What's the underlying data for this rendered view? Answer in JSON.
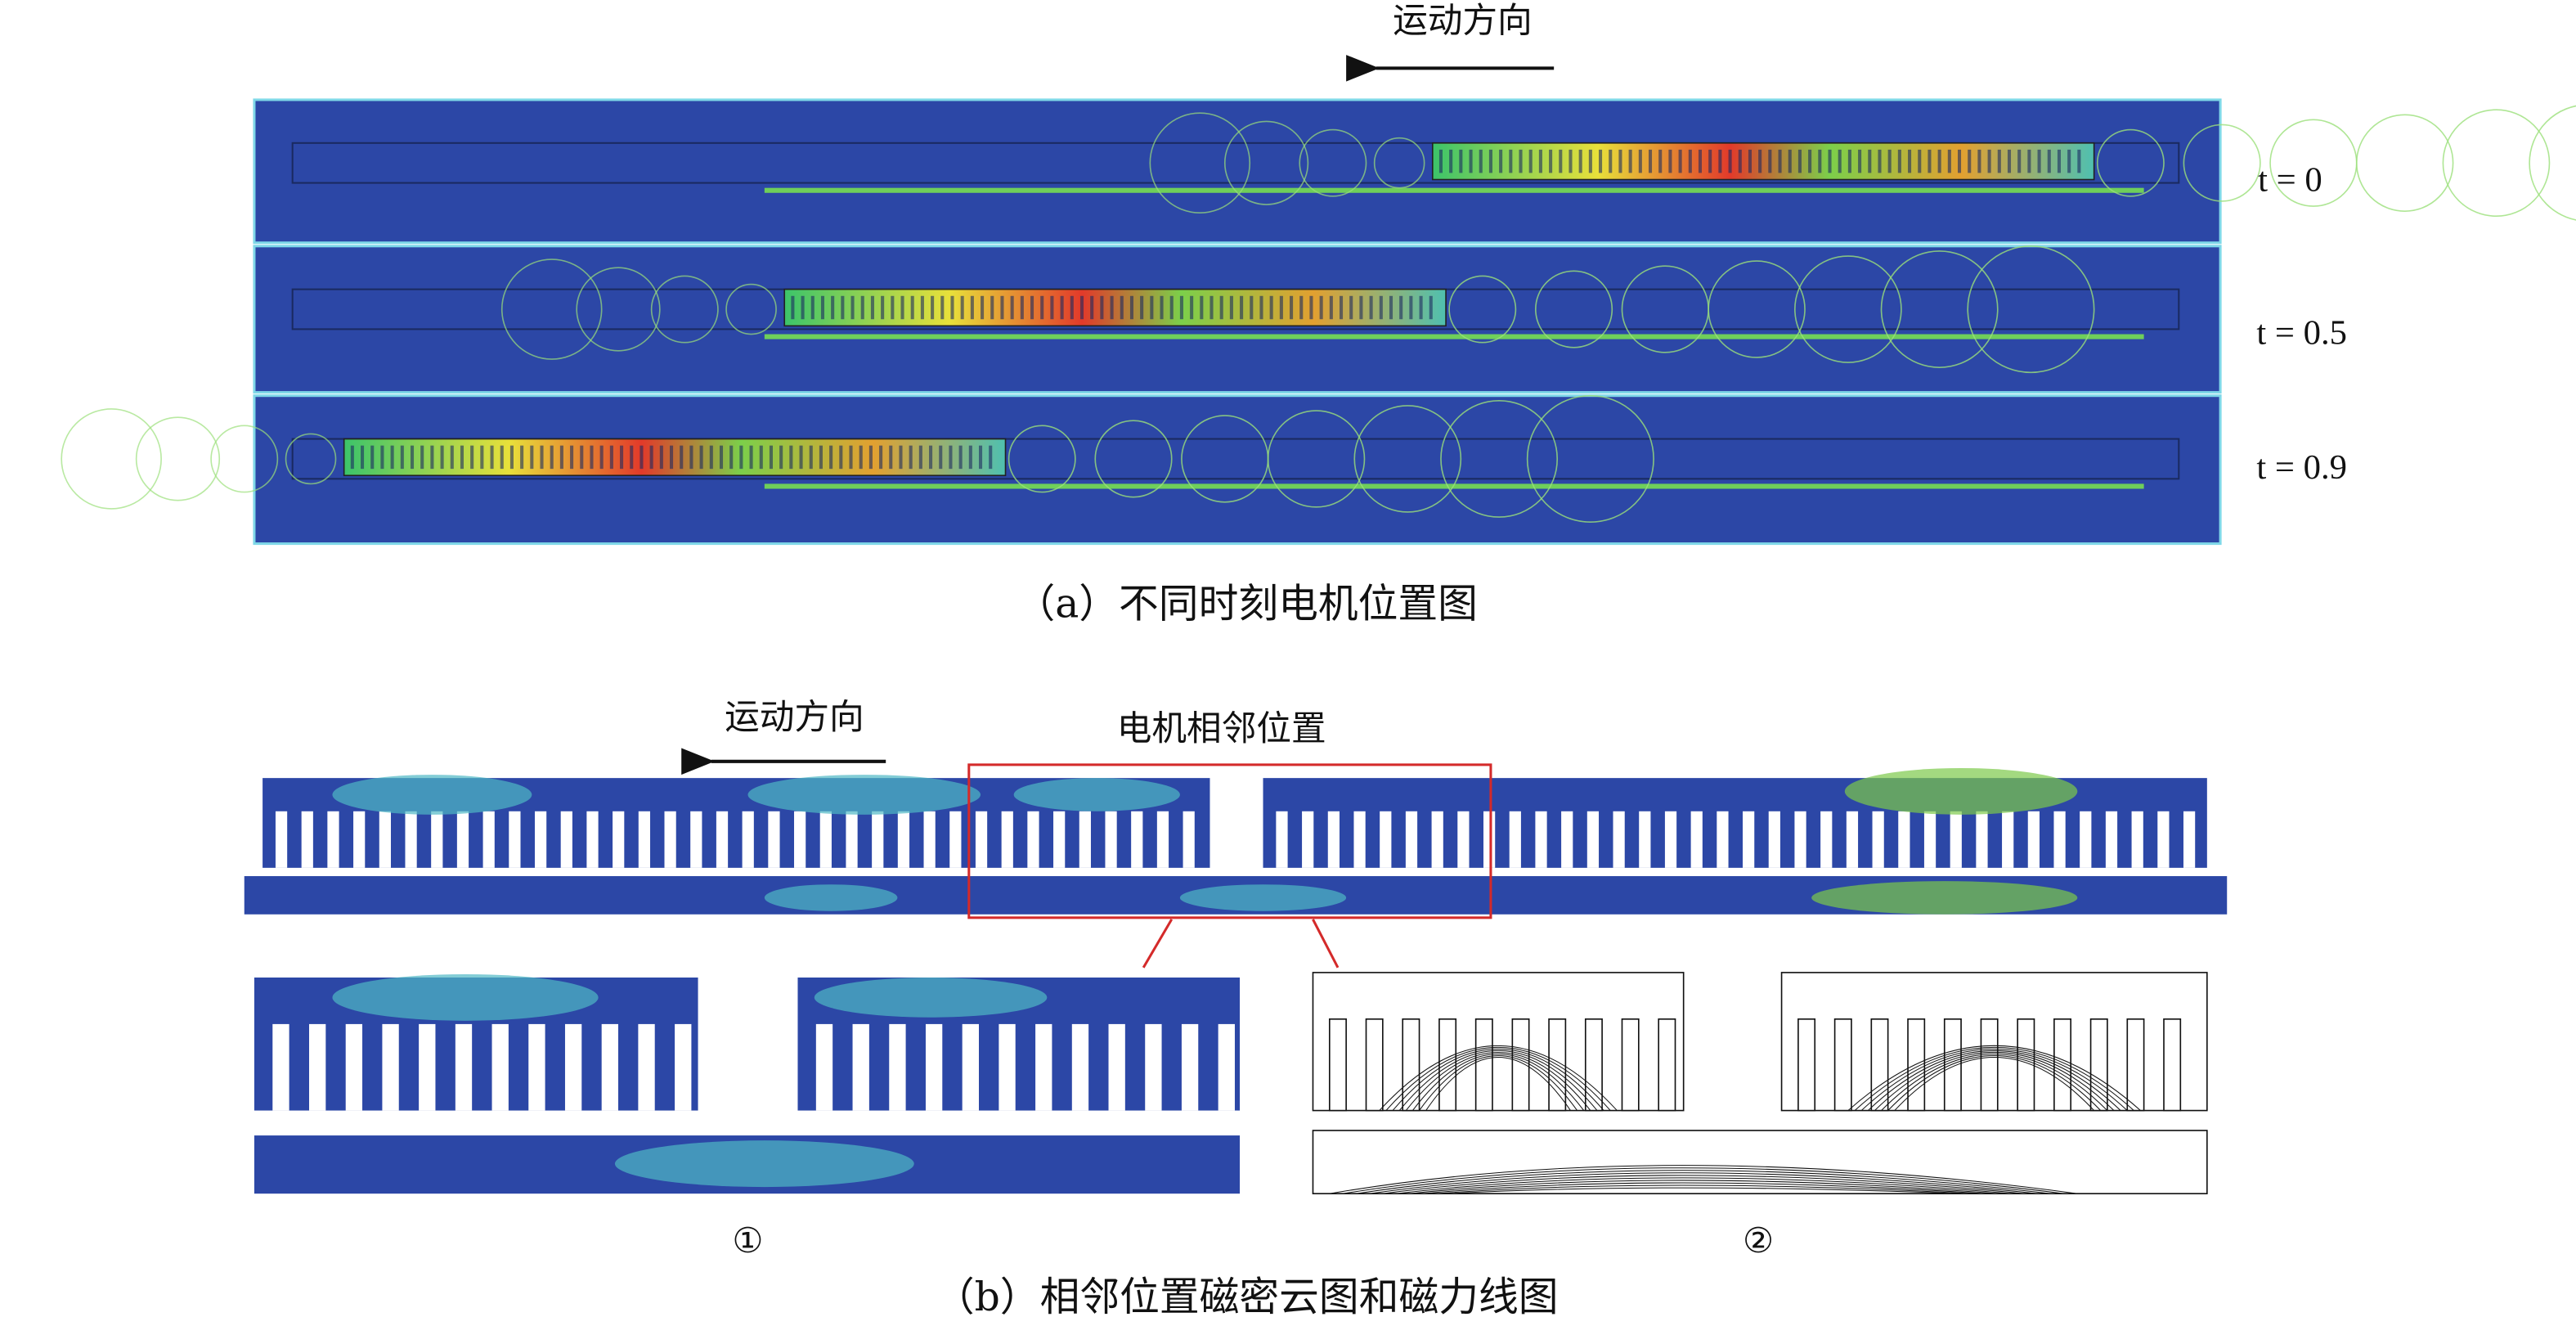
{
  "panel_a": {
    "direction_label": "运动方向",
    "time_labels": [
      "t = 0",
      "t = 0.5",
      "t = 0.9"
    ],
    "caption": "（a）不同时刻电机位置图"
  },
  "panel_b": {
    "direction_label": "运动方向",
    "highlight_label": "电机相邻位置",
    "subfigure_labels": [
      "①",
      "②"
    ],
    "caption": "（b）相邻位置磁密云图和磁力线图"
  }
}
